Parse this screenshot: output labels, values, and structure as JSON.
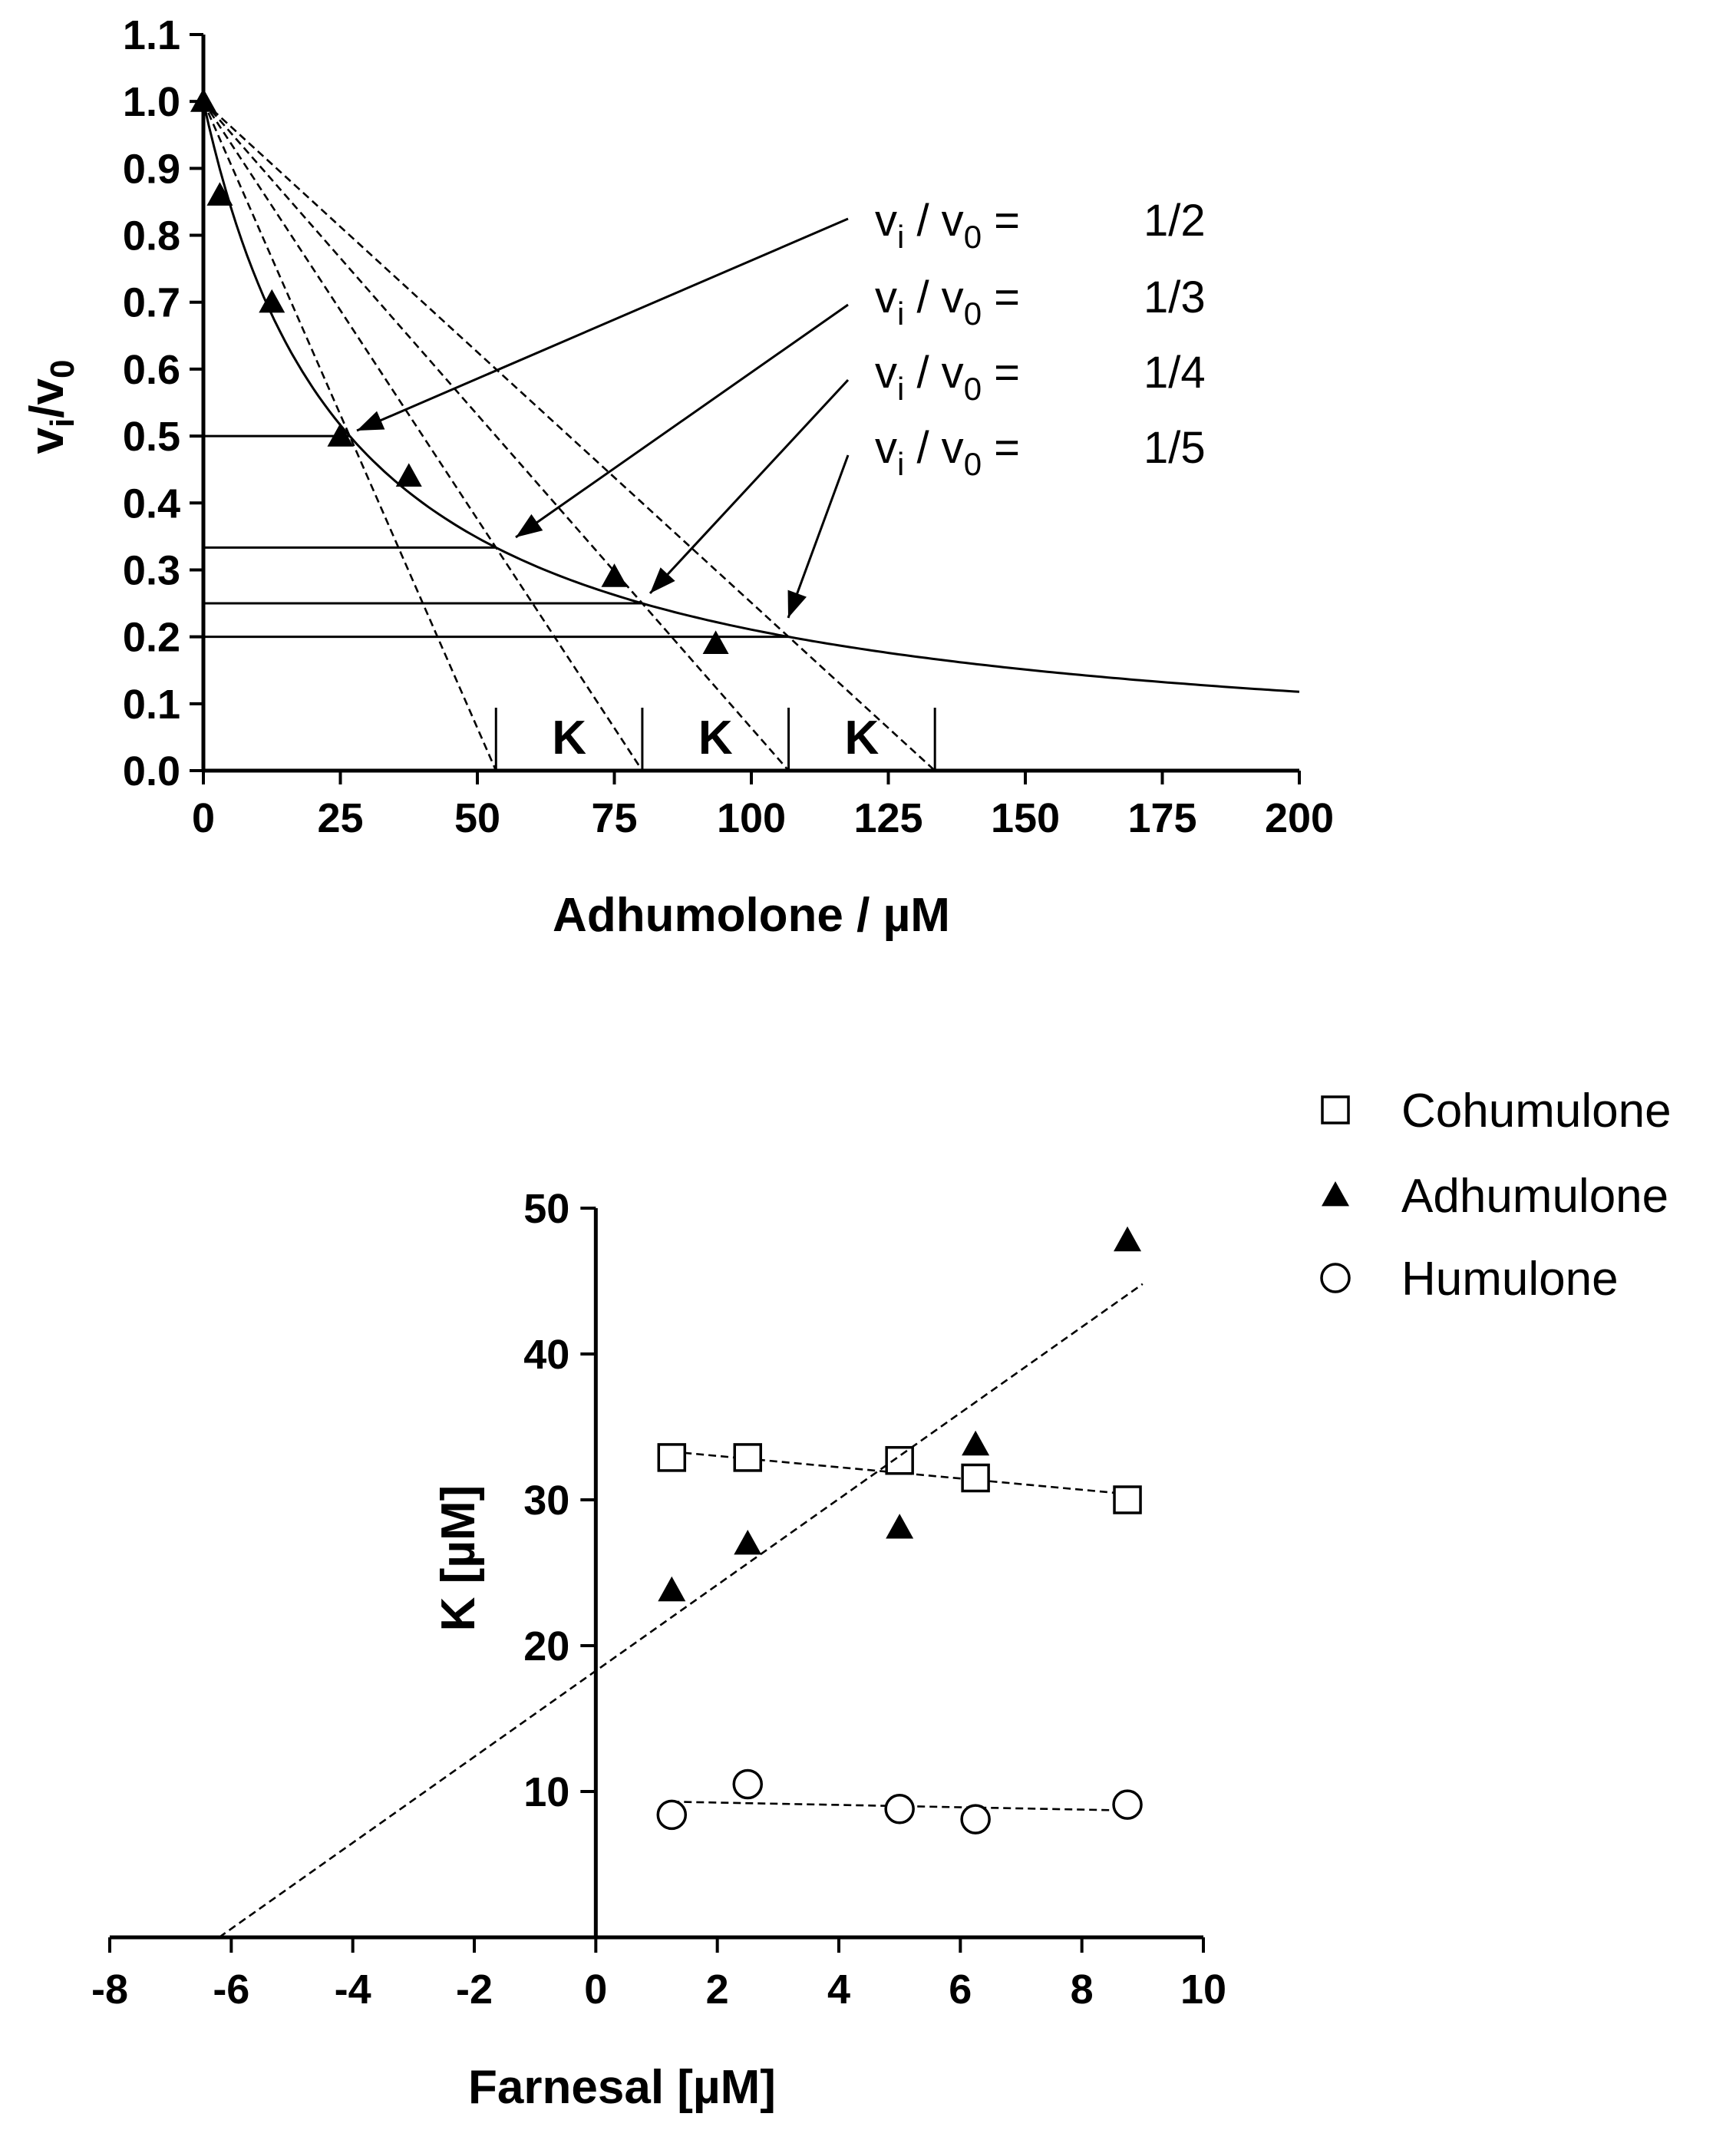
{
  "chart_data": [
    {
      "type": "line",
      "xlabel": "Adhumolone / µM",
      "ylabel": "vi/v0",
      "xlim": [
        0,
        200
      ],
      "ylim": [
        0.0,
        1.1
      ],
      "x_ticks": [
        "0",
        "25",
        "50",
        "75",
        "100",
        "125",
        "150",
        "175",
        "200"
      ],
      "y_ticks": [
        "0.0",
        "0.1",
        "0.2",
        "0.3",
        "0.4",
        "0.5",
        "0.6",
        "0.7",
        "0.8",
        "0.9",
        "1.0",
        "1.1"
      ],
      "fit_K": 26.7,
      "points": {
        "name": "Adhumolone",
        "x": [
          0,
          3,
          12.5,
          25,
          37.5,
          75,
          93.5
        ],
        "y": [
          1.0,
          0.86,
          0.7,
          0.5,
          0.44,
          0.29,
          0.19
        ]
      },
      "levels": [
        {
          "label_prefix": "v",
          "label_sub": "i",
          "label_mid": " / v",
          "label_sub2": "0",
          "label_eq": " =",
          "fraction": "1/2",
          "value": 0.5
        },
        {
          "label_prefix": "v",
          "label_sub": "i",
          "label_mid": " / v",
          "label_sub2": "0",
          "label_eq": " =",
          "fraction": "1/3",
          "value": 0.3333
        },
        {
          "label_prefix": "v",
          "label_sub": "i",
          "label_mid": " / v",
          "label_sub2": "0",
          "label_eq": " =",
          "fraction": "1/4",
          "value": 0.25
        },
        {
          "label_prefix": "v",
          "label_sub": "i",
          "label_mid": " / v",
          "label_sub2": "0",
          "label_eq": " =",
          "fraction": "1/5",
          "value": 0.2
        }
      ],
      "tangent_intercepts": [
        53.4,
        80.1,
        106.8,
        133.5
      ],
      "k_labels": [
        "K",
        "K",
        "K"
      ]
    },
    {
      "type": "scatter",
      "xlabel": "Farnesal [µM]",
      "ylabel": "K [µM]",
      "xlim": [
        -8,
        10
      ],
      "ylim": [
        0,
        50
      ],
      "x_ticks": [
        "-8",
        "-6",
        "-4",
        "-2",
        "0",
        "2",
        "4",
        "6",
        "8",
        "10"
      ],
      "y_ticks": [
        "10",
        "20",
        "30",
        "40",
        "50"
      ],
      "series": [
        {
          "name": "Cohumulone",
          "marker": "square",
          "x": [
            1.25,
            2.5,
            5,
            6.25,
            8.75
          ],
          "y": [
            32.9,
            32.9,
            32.7,
            31.5,
            30.0
          ],
          "fit": {
            "x": [
              1.25,
              8.75
            ],
            "y": [
              33.3,
              30.4
            ]
          }
        },
        {
          "name": "Adhumulone",
          "marker": "triangle",
          "x": [
            1.25,
            2.5,
            5,
            6.25,
            8.75
          ],
          "y": [
            23.8,
            27.0,
            28.1,
            33.8,
            47.8
          ],
          "fit": {
            "x": [
              -6.2,
              9.0
            ],
            "y": [
              0,
              44.8
            ]
          }
        },
        {
          "name": "Humulone",
          "marker": "circle",
          "x": [
            1.25,
            2.5,
            5,
            6.25,
            8.75
          ],
          "y": [
            8.4,
            10.5,
            8.8,
            8.1,
            9.1
          ],
          "fit": {
            "x": [
              1.25,
              8.75
            ],
            "y": [
              9.3,
              8.7
            ]
          }
        }
      ]
    }
  ]
}
